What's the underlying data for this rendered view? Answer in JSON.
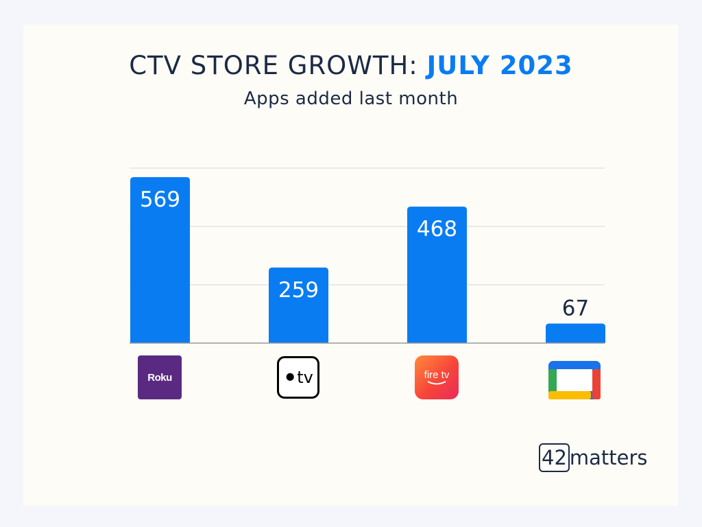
{
  "title_plain": "CTV STORE GROWTH: ",
  "title_highlight": "JULY 2023",
  "subtitle": "Apps added last month",
  "brand": {
    "number": "42",
    "text": "matters"
  },
  "logos": {
    "roku": {
      "icon": "roku-logo",
      "text": "Roku"
    },
    "apple_tv": {
      "icon": "apple-tv-logo",
      "text": "tv"
    },
    "fire_tv": {
      "icon": "fire-tv-logo",
      "text": "fire tv"
    },
    "google_tv": {
      "icon": "google-tv-logo"
    }
  },
  "colors": {
    "bar": "#0a7cf2",
    "title_accent": "#0a7cf2",
    "text": "#1b2a44",
    "grid": "#d9d9d9"
  },
  "chart_data": {
    "type": "bar",
    "title": "CTV STORE GROWTH: JULY 2023",
    "subtitle": "Apps added last month",
    "categories": [
      "Roku",
      "Apple TV",
      "Fire TV",
      "Google TV"
    ],
    "values": [
      569,
      259,
      468,
      67
    ],
    "ylim": [
      0,
      600
    ],
    "grid": true,
    "legend": "none"
  }
}
